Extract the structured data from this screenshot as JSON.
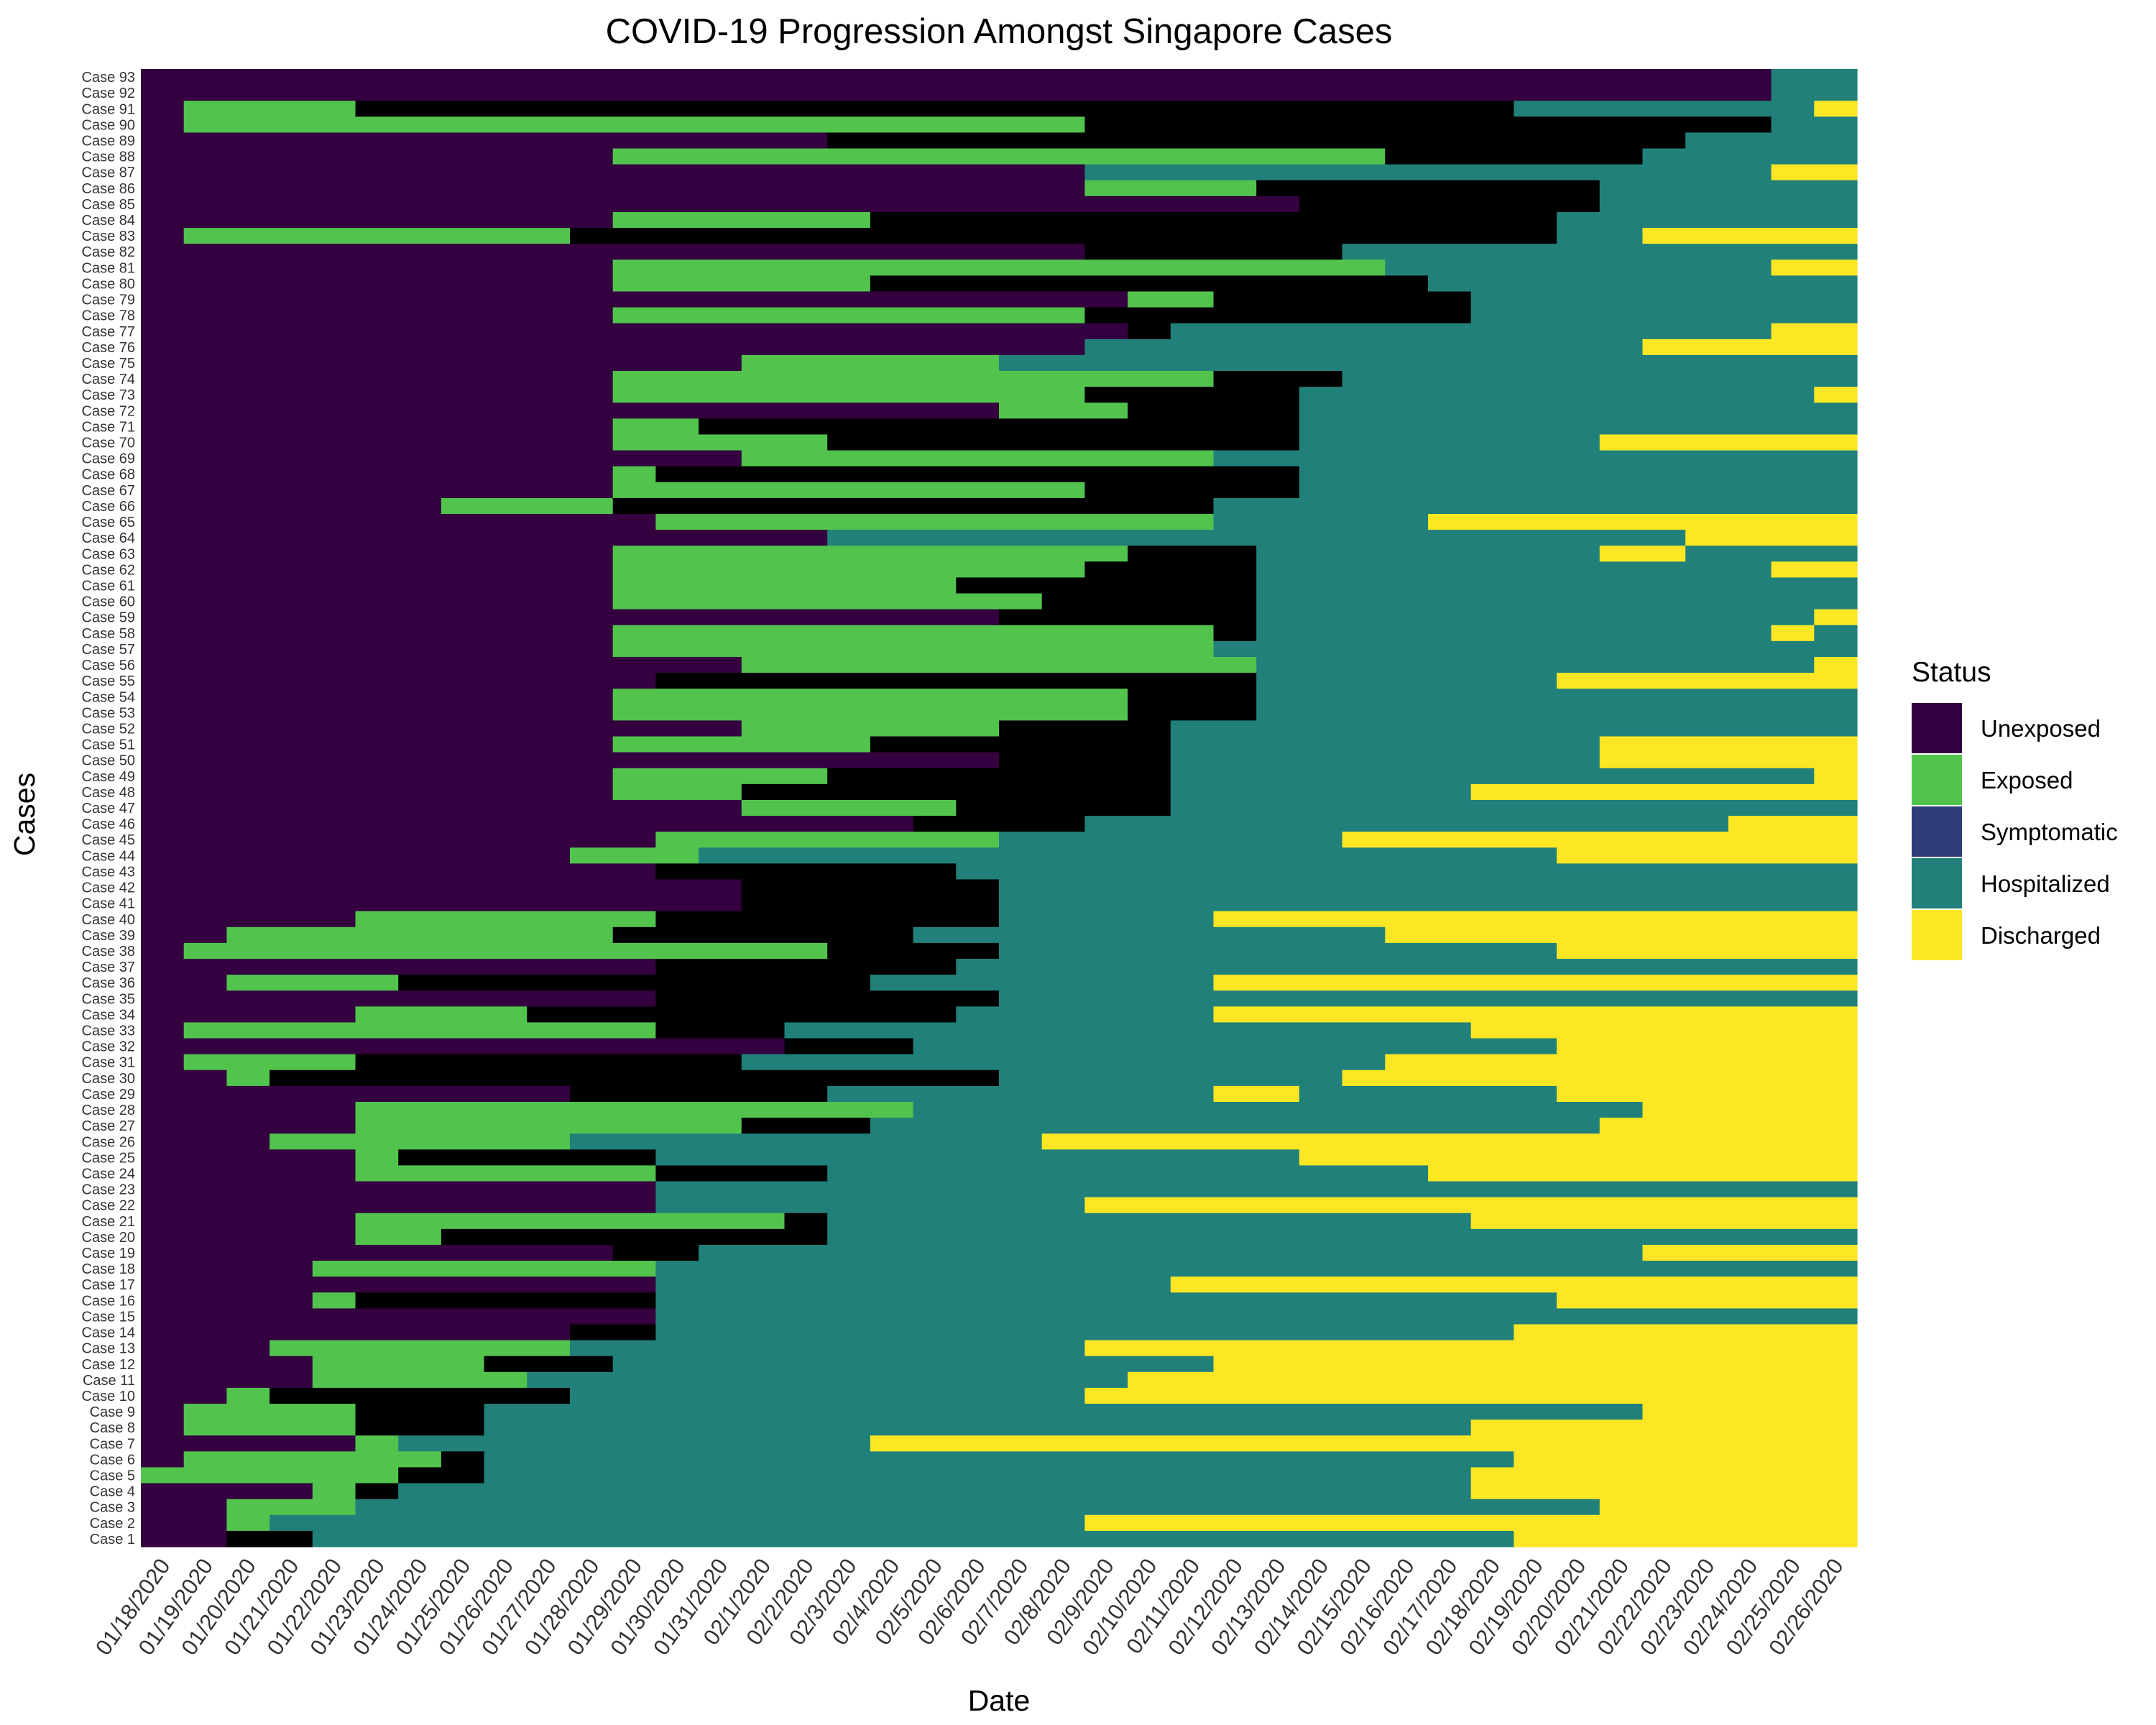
{
  "chart_data": {
    "type": "heatmap",
    "title": "COVID-19 Progression Amongst Singapore Cases",
    "xlabel": "Date",
    "ylabel": "Cases",
    "legend_title": "Status",
    "legend_position": "right",
    "grid": false,
    "categories": [
      {
        "name": "Unexposed",
        "color": "#34003f"
      },
      {
        "name": "Exposed",
        "color": "#52c44e"
      },
      {
        "name": "Symptomatic",
        "color": "#2d3d7a"
      },
      {
        "name": "Hospitalized",
        "color": "#21817a"
      },
      {
        "name": "Discharged",
        "color": "#fde725"
      }
    ],
    "dates": [
      "01/18/2020",
      "01/19/2020",
      "01/20/2020",
      "01/21/2020",
      "01/22/2020",
      "01/23/2020",
      "01/24/2020",
      "01/25/2020",
      "01/26/2020",
      "01/27/2020",
      "01/28/2020",
      "01/29/2020",
      "01/30/2020",
      "01/31/2020",
      "02/1/2020",
      "02/2/2020",
      "02/3/2020",
      "02/4/2020",
      "02/5/2020",
      "02/6/2020",
      "02/7/2020",
      "02/8/2020",
      "02/9/2020",
      "02/10/2020",
      "02/11/2020",
      "02/12/2020",
      "02/13/2020",
      "02/14/2020",
      "02/15/2020",
      "02/16/2020",
      "02/17/2020",
      "02/18/2020",
      "02/19/2020",
      "02/20/2020",
      "02/21/2020",
      "02/22/2020",
      "02/23/2020",
      "02/24/2020",
      "02/25/2020",
      "02/26/2020"
    ],
    "cases": [
      {
        "label": "Case 93",
        "status": "UUUUUUUUUUUUUUUUUUUUUUUUUUUUUUUUUUUUUUHH"
      },
      {
        "label": "Case 92",
        "status": "UUUUUUUUUUUUUUUUUUUUUUUUUUUUUUUUUUUUUUHH"
      },
      {
        "label": "Case 91",
        "status": "UEEEEPPPPPPPPPPPPPPPPPPPPPPPPPPPHHHHHHHD"
      },
      {
        "label": "Case 90",
        "status": "UEEEEEEEEEEEEEEEEEEEEEPPPPPPPPPPPPPPPPHH"
      },
      {
        "label": "Case 89",
        "status": "UUUUUUUUUUUUUUUUPPPPPPPPPPPPPPPPPPPPHHHH"
      },
      {
        "label": "Case 88",
        "status": "UUUUUUUUUUUEEEEEEEEEEEEEEEEEEPPPPPPHHHHH"
      },
      {
        "label": "Case 87",
        "status": "UUUUUUUUUUUUUUUUUUUUUUHHHHHHHHHHHHHHHHDD"
      },
      {
        "label": "Case 86",
        "status": "UUUUUUUUUUUUUUUUUUUUUUEEEEPPPPPPPPHHHHHH"
      },
      {
        "label": "Case 85",
        "status": "UUUUUUUUUUUUUUUUUUUUUUUUUUUPPPPPPPHHHHHH"
      },
      {
        "label": "Case 84",
        "status": "UUUUUUUUUUUEEEEEEPPPPPPPPPPPPPPPPHHHHHHH"
      },
      {
        "label": "Case 83",
        "status": "UEEEEEEEEEPPPPPPPPPPPPPPPPPPPPPPPHHDDDDD"
      },
      {
        "label": "Case 82",
        "status": "UUUUUUUUUUUUUUUUUUUUUUPPPPPPHHHHHHHHHHHH"
      },
      {
        "label": "Case 81",
        "status": "UUUUUUUUUUUEEEEEEEEEEEEEEEEEEHHHHHHHHHDD"
      },
      {
        "label": "Case 80",
        "status": "UUUUUUUUUUUEEEEEEPPPPPPPPPPPPPHHHHHHHHHH"
      },
      {
        "label": "Case 79",
        "status": "UUUUUUUUUUUUUUUUUUUUUUUEEPPPPPPHHHHHHHHH"
      },
      {
        "label": "Case 78",
        "status": "UUUUUUUUUUUEEEEEEEEEEEPPPPPPPPPHHHHHHHHH"
      },
      {
        "label": "Case 77",
        "status": "UUUUUUUUUUUUUUUUUUUUUUUPHHHHHHHHHHHHHHDD"
      },
      {
        "label": "Case 76",
        "status": "UUUUUUUUUUUUUUUUUUUUUUHHHHHHHHHHHHHDDDDD"
      },
      {
        "label": "Case 75",
        "status": "UUUUUUUUUUUUUUEEEEEEHHHHHHHHHHHHHHHHHHHH"
      },
      {
        "label": "Case 74",
        "status": "UUUUUUUUUUUEEEEEEEEEEEEEEPPPHHHHHHHHHHHH"
      },
      {
        "label": "Case 73",
        "status": "UUUUUUUUUUUEEEEEEEEEEEPPPPPHHHHHHHHHHHHD"
      },
      {
        "label": "Case 72",
        "status": "UUUUUUUUUUUUUUUUUUUUEEEPPPPHHHHHHHHHHHHH"
      },
      {
        "label": "Case 71",
        "status": "UUUUUUUUUUUEEPPPPPPPPPPPPPPHHHHHHHHHHHHH"
      },
      {
        "label": "Case 70",
        "status": "UUUUUUUUUUUEEEEEPPPPPPPPPPPHHHHHHHDDDDDD"
      },
      {
        "label": "Case 69",
        "status": "UUUUUUUUUUUUUUEEEEEEEEEEEHHHHHHHHHHHHHHH"
      },
      {
        "label": "Case 68",
        "status": "UUUUUUUUUUUEPPPPPPPPPPPPPPPHHHHHHHHHHHHH"
      },
      {
        "label": "Case 67",
        "status": "UUUUUUUUUUUEEEEEEEEEEEPPPPPHHHHHHHHHHHHH"
      },
      {
        "label": "Case 66",
        "status": "UUUUUUUEEEEPPPPPPPPPPPPPPHHHHHHHHHHHHHHH"
      },
      {
        "label": "Case 65",
        "status": "UUUUUUUUUUUUEEEEEEEEEEEEEHHHHHDDDDDDDDDD"
      },
      {
        "label": "Case 64",
        "status": "UUUUUUUUUUUUUUUUHHHHHHHHHHHHHHHHHHHHDDDD"
      },
      {
        "label": "Case 63",
        "status": "UUUUUUUUUUUEEEEEEEEEEEEPPPHHHHHHHHDDHHHH"
      },
      {
        "label": "Case 62",
        "status": "UUUUUUUUUUUEEEEEEEEEEEPPPPHHHHHHHHHHHHDD"
      },
      {
        "label": "Case 61",
        "status": "UUUUUUUUUUUEEEEEEEEPPPPPPPHHHHHHHHHHHHHH"
      },
      {
        "label": "Case 60",
        "status": "UUUUUUUUUUUEEEEEEEEEEPPPPPHHHHHHHHHHHHHH"
      },
      {
        "label": "Case 59",
        "status": "UUUUUUUUUUUUUUUUUUUUPPPPPPHHHHHHHHHHHHHD"
      },
      {
        "label": "Case 58",
        "status": "UUUUUUUUUUUEEEEEEEEEEEEEEPHHHHHHHHHHHHDH"
      },
      {
        "label": "Case 57",
        "status": "UUUUUUUUUUUEEEEEEEEEEEEEEHHHHHHHHHHHHHHH"
      },
      {
        "label": "Case 56",
        "status": "UUUUUUUUUUUUUUEEEEEEEEEEEEHHHHHHHHHHHHHD"
      },
      {
        "label": "Case 55",
        "status": "UUUUUUUUUUUUPPPPPPPPPPPPPPHHHHHHHDDDDDDD"
      },
      {
        "label": "Case 54",
        "status": "UUUUUUUUUUUEEEEEEEEEEEEPPPHHHHHHHHHHHHHH"
      },
      {
        "label": "Case 53",
        "status": "UUUUUUUUUUUEEEEEEEEEEEEPPPHHHHHHHHHHHHHH"
      },
      {
        "label": "Case 52",
        "status": "UUUUUUUUUUUUUUEEEEEEPPPPHHHHHHHHHHHHHHHH"
      },
      {
        "label": "Case 51",
        "status": "UUUUUUUUUUUEEEEEEPPPPPPPHHHHHHHHHHDDDDDD"
      },
      {
        "label": "Case 50",
        "status": "UUUUUUUUUUUUUUUUUUUUPPPPHHHHHHHHHHDDDDDD"
      },
      {
        "label": "Case 49",
        "status": "UUUUUUUUUUUEEEEEPPPPPPPPHHHHHHHHHHHHHHHD"
      },
      {
        "label": "Case 48",
        "status": "UUUUUUUUUUUEEEPPPPPPPPPPHHHHHHHDDDDDDDDD"
      },
      {
        "label": "Case 47",
        "status": "UUUUUUUUUUUUUUEEEEEPPPPPHHHHHHHHHHHHHHHH"
      },
      {
        "label": "Case 46",
        "status": "UUUUUUUUUUUUUUUUUUPPPPHHHHHHHHHHHHHHHDDD"
      },
      {
        "label": "Case 45",
        "status": "UUUUUUUUUUUUEEEEEEEEHHHHHHHHDDDDDDDDDDDD"
      },
      {
        "label": "Case 44",
        "status": "UUUUUUUUUUEEEHHHHHHHHHHHHHHHHHHHHDDDDDDD"
      },
      {
        "label": "Case 43",
        "status": "UUUUUUUUUUUUPPPPPPPHHHHHHHHHHHHHHHHHHHHH"
      },
      {
        "label": "Case 42",
        "status": "UUUUUUUUUUUUUUPPPPPPHHHHHHHHHHHHHHHHHHHH"
      },
      {
        "label": "Case 41",
        "status": "UUUUUUUUUUUUUUPPPPPPHHHHHHHHHHHHHHHHHHHH"
      },
      {
        "label": "Case 40",
        "status": "UUUUUEEEEEEEPPPPPPPPHHHHHDDDDDDDDDDDDDDD"
      },
      {
        "label": "Case 39",
        "status": "UUEEEEEEEEEPPPPPPPHHHHHHHHHHHDDDDDDDDDDD"
      },
      {
        "label": "Case 38",
        "status": "UEEEEEEEEEEEEEEEPPPPHHHHHHHHHHHHHDDDDDDD"
      },
      {
        "label": "Case 37",
        "status": "UUUUUUUUUUUUPPPPPPPHHHHHHHHHHHHHHHHHHHHH"
      },
      {
        "label": "Case 36",
        "status": "UUEEEEPPPPPPPPPPPHHHHHHHHDDDDDDDDDDDDDDD"
      },
      {
        "label": "Case 35",
        "status": "UUUUUUUUUUUUPPPPPPPPHHHHHHHHHHHHHHHHHHHH"
      },
      {
        "label": "Case 34",
        "status": "UUUUUEEEEPPPPPPPPPPHHHHHHDDDDDDDDDDDDDDD"
      },
      {
        "label": "Case 33",
        "status": "UEEEEEEEEEEEPPPHHHHHHHHHHHHHHHHDDDDDDDDD"
      },
      {
        "label": "Case 32",
        "status": "UUUUUUUUUUUUUUUPPPHHHHHHHHHHHHHHHDDDDDDD"
      },
      {
        "label": "Case 31",
        "status": "UEEEEPPPPPPPPPHHHHHHHHHHHHHHHDDDDDDDDDDD"
      },
      {
        "label": "Case 30",
        "status": "UUEPPPPPPPPPPPPPPPPPHHHHHHHHDDDDDDDDDDDD"
      },
      {
        "label": "Case 29",
        "status": "UUUUUUUUUUPPPPPPHHHHHHHHHDDHHHHHHDDDDDDD"
      },
      {
        "label": "Case 28",
        "status": "UUUUUEEEEEEEEEEEEEHHHHHHHHHHHHHHHHHDDDDD"
      },
      {
        "label": "Case 27",
        "status": "UUUUUEEEEEEEEEPPPHHHHHHHHHHHHHHHHHDDDDDD"
      },
      {
        "label": "Case 26",
        "status": "UUUEEEEEEEHHHHHHHHHHHDDDDDDDDDDDDDDDDDDD"
      },
      {
        "label": "Case 25",
        "status": "UUUUUEPPPPPPHHHHHHHHHHHHHHHDDDDDDDDDDDDD"
      },
      {
        "label": "Case 24",
        "status": "UUUUUEEEEEEEPPPPHHHHHHHHHHHHHHDDDDDDDDDD"
      },
      {
        "label": "Case 23",
        "status": "UUUUUUUUUUUUHHHHHHHHHHHHHHHHHHHHHHHHHHHH"
      },
      {
        "label": "Case 22",
        "status": "UUUUUUUUUUUUHHHHHHHHHHDDDDDDDDDDDDDDDDDD"
      },
      {
        "label": "Case 21",
        "status": "UUUUUEEEEEEEEEEPHHHHHHHHHHHHHHHDDDDDDDDD"
      },
      {
        "label": "Case 20",
        "status": "UUUUUEEPPPPPPPPPHHHHHHHHHHHHHHHHHHHHHHHH"
      },
      {
        "label": "Case 19",
        "status": "UUUUUUUUUUUPPHHHHHHHHHHHHHHHHHHHHHHDDDDD"
      },
      {
        "label": "Case 18",
        "status": "UUUUEEEEEEEEHHHHHHHHHHHHHHHHHHHHHHHHHHHH"
      },
      {
        "label": "Case 17",
        "status": "UUUUUUUUUUUUHHHHHHHHHHHHDDDDDDDDDDDDDDDD"
      },
      {
        "label": "Case 16",
        "status": "UUUUEPPPPPPPHHHHHHHHHHHHHHHHHHHHHDDDDDDD"
      },
      {
        "label": "Case 15",
        "status": "UUUUUUUUUUUUHHHHHHHHHHHHHHHHHHHHHHHHHHHH"
      },
      {
        "label": "Case 14",
        "status": "UUUUUUUUUUPPHHHHHHHHHHHHHHHHHHHHDDDDDDDD"
      },
      {
        "label": "Case 13",
        "status": "UUUEEEEEEEHHHHHHHHHHHHDDDDDDDDDDDDDDDDDD"
      },
      {
        "label": "Case 12",
        "status": "UUUUEEEEPPPHHHHHHHHHHHHHHDDDDDDDDDDDDDDD"
      },
      {
        "label": "Case 11",
        "status": "UUUUEEEEEHHHHHHHHHHHHHHDDDDDDDDDDDDDDDDD"
      },
      {
        "label": "Case 10",
        "status": "UUEPPPPPPPHHHHHHHHHHHHDDDDDDDDDDDDDDDDDD"
      },
      {
        "label": "Case 9",
        "status": "UEEEEPPPHHHHHHHHHHHHHHHHHHHHHHHHHHHDDDDD"
      },
      {
        "label": "Case 8",
        "status": "UEEEEPPPHHHHHHHHHHHHHHHHHHHHHHHDDDDDDDDD"
      },
      {
        "label": "Case 7",
        "status": "UUUUUEHHHHHHHHHHHDDDDDDDDDDDDDDDDDDDDDDD"
      },
      {
        "label": "Case 6",
        "status": "UEEEEEEPHHHHHHHHHHHHHHHHHHHHHHHHDDDDDDDD"
      },
      {
        "label": "Case 5",
        "status": "EEEEEEPPHHHHHHHHHHHHHHHHHHHHHHHDDDDDDDDD"
      },
      {
        "label": "Case 4",
        "status": "UUUUEPHHHHHHHHHHHHHHHHHHHHHHHHHDDDDDDDDD"
      },
      {
        "label": "Case 3",
        "status": "UUEEEHHHHHHHHHHHHHHHHHHHHHHHHHHHHHDDDDDD"
      },
      {
        "label": "Case 2",
        "status": "UUEHHHHHHHHHHHHHHHHHHHDDDDDDDDDDDDDDDDDD"
      },
      {
        "label": "Case 1",
        "status": "UUPPHHHHHHHHHHHHHHHHHHHHHHHHHHHHDDDDDDDD"
      }
    ]
  }
}
